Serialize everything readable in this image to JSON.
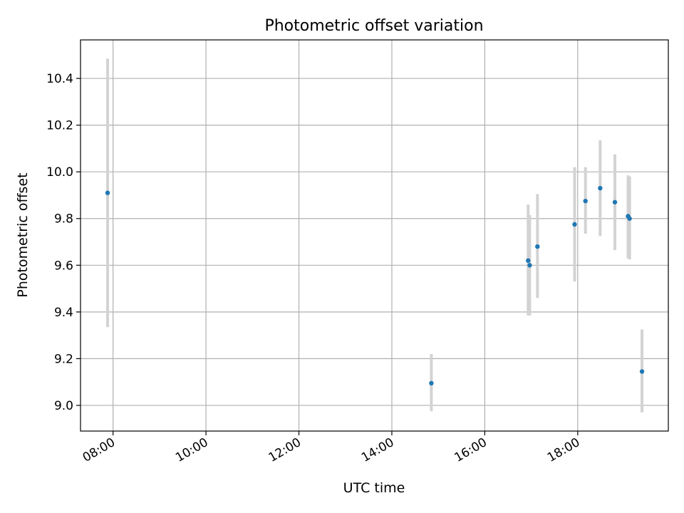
{
  "chart_data": {
    "type": "scatter",
    "title": "Photometric offset variation",
    "xlabel": "UTC time",
    "ylabel": "Photometric offset",
    "x_axis_kind": "time",
    "xlim": [
      "07:18",
      "19:57"
    ],
    "ylim": [
      8.89,
      10.565
    ],
    "x_ticks": [
      "08:00",
      "10:00",
      "12:00",
      "14:00",
      "16:00",
      "18:00"
    ],
    "y_ticks": [
      9.0,
      9.2,
      9.4,
      9.6,
      9.8,
      10.0,
      10.2,
      10.4
    ],
    "y_tick_labels": [
      "9.0",
      "9.2",
      "9.4",
      "9.6",
      "9.8",
      "10.0",
      "10.2",
      "10.4"
    ],
    "grid": true,
    "series": [
      {
        "marker_color": "#1f77b4",
        "error_color": "#d3d3d3",
        "points": [
          {
            "x": "07:53",
            "y": 9.91,
            "ylow": 9.335,
            "yhigh": 10.485
          },
          {
            "x": "14:51",
            "y": 9.095,
            "ylow": 8.975,
            "yhigh": 9.22
          },
          {
            "x": "16:56",
            "y": 9.62,
            "ylow": 9.385,
            "yhigh": 9.86
          },
          {
            "x": "16:58",
            "y": 9.6,
            "ylow": 9.385,
            "yhigh": 9.815
          },
          {
            "x": "17:08",
            "y": 9.68,
            "ylow": 9.46,
            "yhigh": 9.905
          },
          {
            "x": "17:56",
            "y": 9.775,
            "ylow": 9.53,
            "yhigh": 10.02
          },
          {
            "x": "18:10",
            "y": 9.875,
            "ylow": 9.735,
            "yhigh": 10.02
          },
          {
            "x": "18:29",
            "y": 9.93,
            "ylow": 9.725,
            "yhigh": 10.135
          },
          {
            "x": "18:48",
            "y": 9.87,
            "ylow": 9.665,
            "yhigh": 10.075
          },
          {
            "x": "19:05",
            "y": 9.81,
            "ylow": 9.63,
            "yhigh": 9.985
          },
          {
            "x": "19:07",
            "y": 9.8,
            "ylow": 9.625,
            "yhigh": 9.98
          },
          {
            "x": "19:23",
            "y": 9.145,
            "ylow": 8.97,
            "yhigh": 9.325
          }
        ]
      }
    ]
  }
}
